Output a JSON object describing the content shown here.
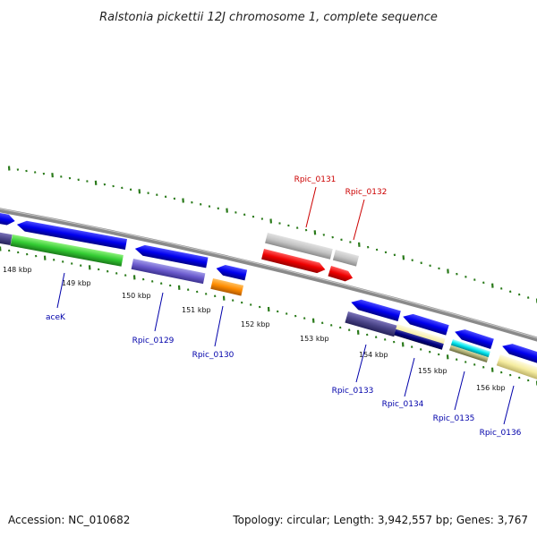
{
  "title": "Ralstonia pickettii 12J chromosome 1, complete sequence",
  "footer": {
    "accession": "Accession: NC_010682",
    "summary": "Topology: circular; Length: 3,942,557 bp; Genes: 3,767"
  },
  "colors": {
    "backbone": "#8a8a8a",
    "tick": "#2a7a1a",
    "forward_label": "#cc0000",
    "reverse_label": "#0000aa"
  },
  "scale_labels": [
    "148 kbp",
    "149 kbp",
    "150 kbp",
    "151 kbp",
    "152 kbp",
    "153 kbp",
    "154 kbp",
    "155 kbp",
    "156 kbp"
  ],
  "genes": [
    {
      "label": "aceK",
      "strand": "reverse"
    },
    {
      "label": "Rpic_0129",
      "strand": "reverse"
    },
    {
      "label": "Rpic_0130",
      "strand": "reverse"
    },
    {
      "label": "Rpic_0131",
      "strand": "forward"
    },
    {
      "label": "Rpic_0132",
      "strand": "forward"
    },
    {
      "label": "Rpic_0133",
      "strand": "reverse"
    },
    {
      "label": "Rpic_0134",
      "strand": "reverse"
    },
    {
      "label": "Rpic_0135",
      "strand": "reverse"
    },
    {
      "label": "Rpic_0136",
      "strand": "reverse"
    }
  ]
}
